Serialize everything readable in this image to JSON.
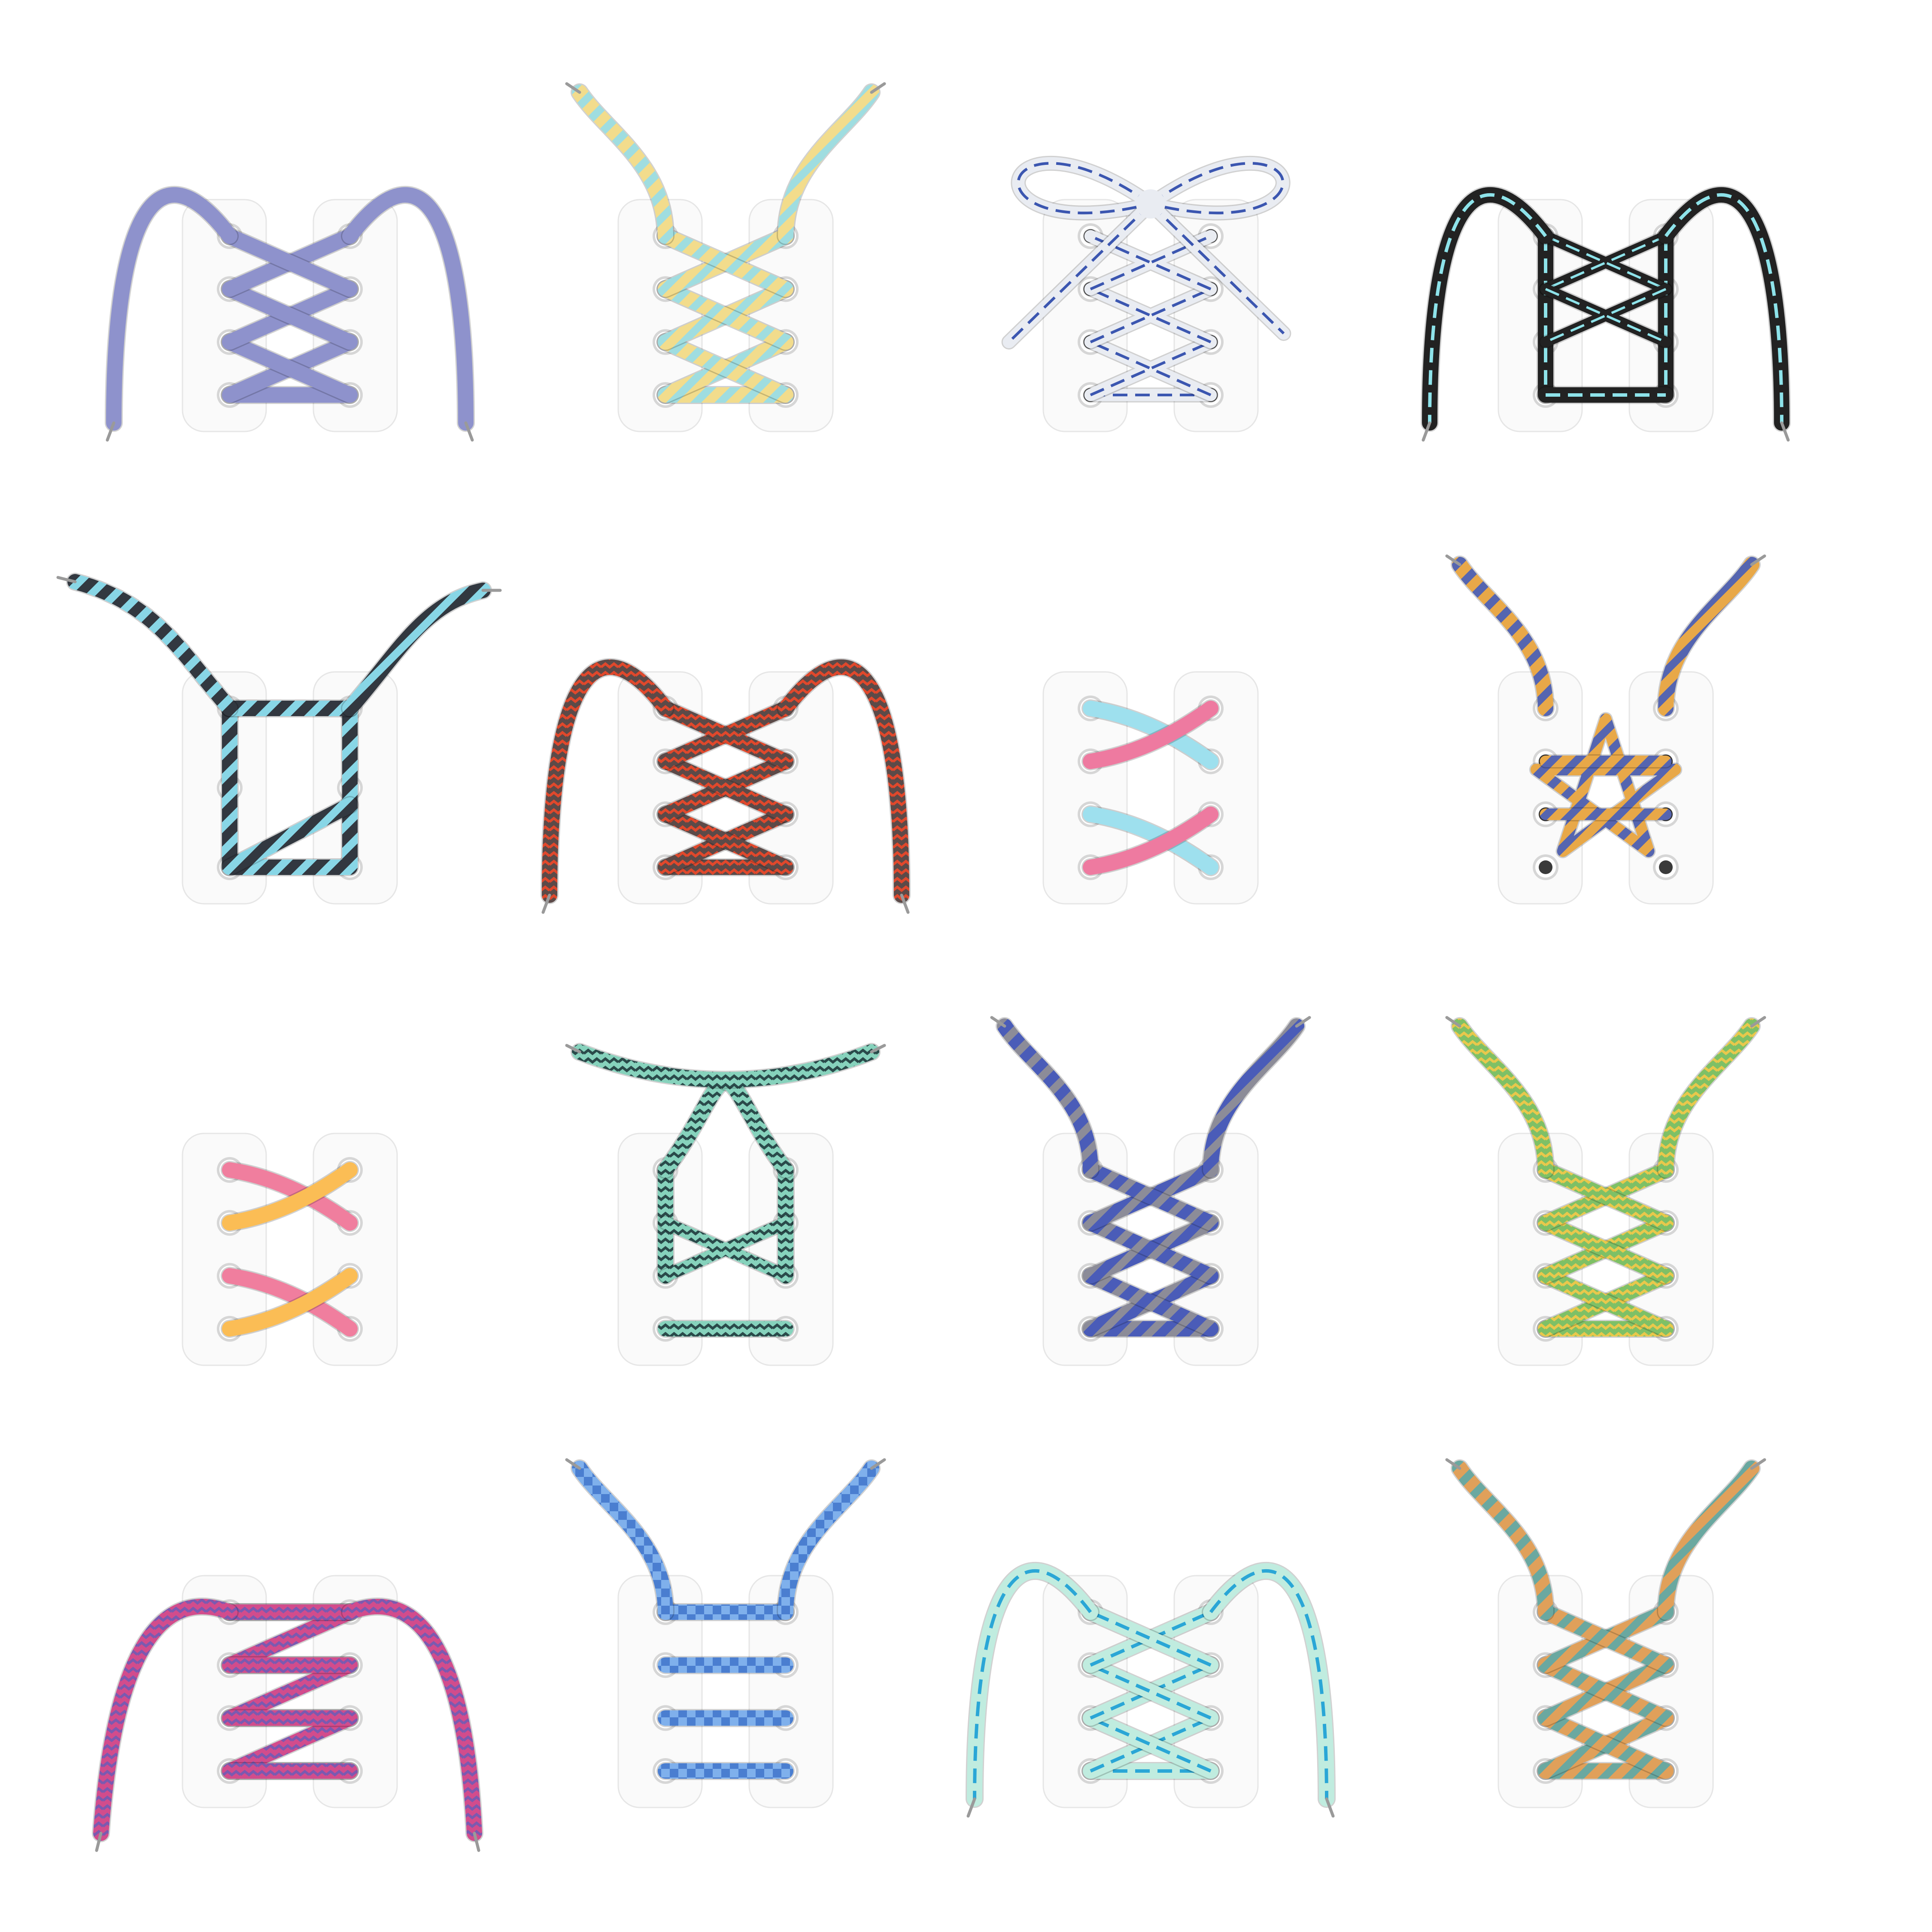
{
  "background": "#ffffff",
  "tile_colors": {
    "face": "#fafafa",
    "edge": "#e6e6e6",
    "eyelet_ring": "#d6d6d6",
    "eyelet_rim": "#ffffff",
    "eyelet_hole": "#3a3a3a",
    "tip": "#9a9a9a"
  },
  "items": [
    {
      "name": "criss-cross-loops",
      "style": "criss",
      "eyelets": 4,
      "ends": "loops",
      "colors": {
        "base": "#8e92cc",
        "accent": "#6a6cb8"
      },
      "pattern": "solid"
    },
    {
      "name": "ladder-cross-up",
      "style": "zigzag",
      "eyelets": 4,
      "ends": "up",
      "colors": {
        "base": "#f2dc8c",
        "accent": "#9fdde0"
      },
      "pattern": "stripes"
    },
    {
      "name": "bow-knot",
      "style": "bow",
      "eyelets": 4,
      "ends": "bow",
      "colors": {
        "base": "#e9ecf2",
        "accent": "#3b56b0"
      },
      "pattern": "dash"
    },
    {
      "name": "straight-bar-loops",
      "style": "straight",
      "eyelets": 4,
      "ends": "loops",
      "colors": {
        "base": "#222222",
        "accent": "#8ee3ea"
      },
      "pattern": "dash"
    },
    {
      "name": "box-lacing",
      "style": "box",
      "eyelets": 3,
      "ends": "wave",
      "colors": {
        "base": "#323840",
        "accent": "#88d6e6"
      },
      "pattern": "stripes"
    },
    {
      "name": "double-cross-loops",
      "style": "criss",
      "eyelets": 4,
      "ends": "loops",
      "colors": {
        "base": "#5c4a48",
        "accent": "#e0482c"
      },
      "pattern": "zigzag"
    },
    {
      "name": "twin-twist",
      "style": "twist",
      "eyelets": 4,
      "ends": "none",
      "colors": {
        "base": "#ee7aa0",
        "accent": "#9ee0ee"
      },
      "pattern": "solid"
    },
    {
      "name": "star-lacing",
      "style": "star",
      "eyelets": 4,
      "ends": "up",
      "colors": {
        "base": "#e8a848",
        "accent": "#5565b0"
      },
      "pattern": "stripes"
    },
    {
      "name": "two-tone-twist",
      "style": "twist",
      "eyelets": 4,
      "ends": "none",
      "colors": {
        "base": "#fbbd55",
        "accent": "#f07e9e"
      },
      "pattern": "solid"
    },
    {
      "name": "hidden-knot",
      "style": "hidden",
      "eyelets": 4,
      "ends": "arc",
      "colors": {
        "base": "#86d2bc",
        "accent": "#2a4a4a"
      },
      "pattern": "zigzag"
    },
    {
      "name": "lattice-up",
      "style": "criss",
      "eyelets": 4,
      "ends": "up",
      "colors": {
        "base": "#4a5cb8",
        "accent": "#8c8c98"
      },
      "pattern": "stripes"
    },
    {
      "name": "zigzag-green",
      "style": "zigzag",
      "eyelets": 4,
      "ends": "up",
      "colors": {
        "base": "#7ec066",
        "accent": "#e8c84c"
      },
      "pattern": "zigzag"
    },
    {
      "name": "lightning-loops",
      "style": "lightning",
      "eyelets": 4,
      "ends": "down",
      "colors": {
        "base": "#d24c8c",
        "accent": "#7b5ab0"
      },
      "pattern": "zigzag"
    },
    {
      "name": "bar-lacing",
      "style": "bars",
      "eyelets": 4,
      "ends": "up",
      "colors": {
        "base": "#7fb0ec",
        "accent": "#4a7ed0"
      },
      "pattern": "checks"
    },
    {
      "name": "cross-loops-mint",
      "style": "criss",
      "eyelets": 4,
      "ends": "loops",
      "colors": {
        "base": "#c0ecdf",
        "accent": "#2aa6d6"
      },
      "pattern": "dash"
    },
    {
      "name": "zigzag-brown",
      "style": "zigzag",
      "eyelets": 4,
      "ends": "up",
      "colors": {
        "base": "#e0a05a",
        "accent": "#6aa8a0"
      },
      "pattern": "stripes"
    }
  ]
}
